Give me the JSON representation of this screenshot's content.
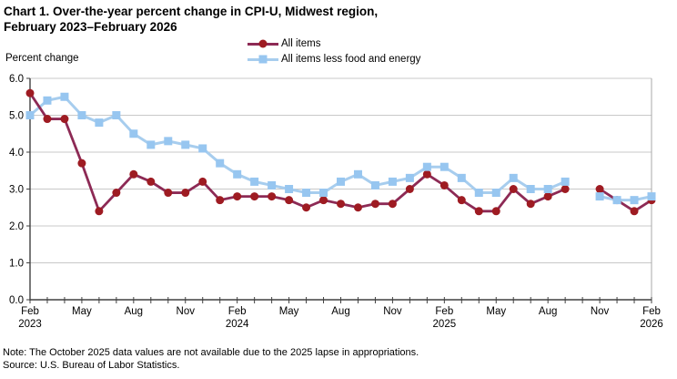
{
  "title": {
    "line1": "Chart 1. Over-the-year percent change in CPI-U, Midwest region,",
    "line2": "February 2023–February 2026"
  },
  "axis": {
    "y_title": "Percent change"
  },
  "legend": [
    {
      "label": "All items"
    },
    {
      "label": "All items less food and energy"
    }
  ],
  "note": "Note: The October 2025 data values are not available due to the 2025 lapse in appropriations.",
  "source": "Source: U.S. Bureau of Labor Statistics.",
  "colors": {
    "all_items_line": "#8D2A55",
    "all_items_marker": "#9E1B22",
    "core_line": "#A7CDEE",
    "core_marker": "#97C6F0",
    "gridline": "#C8C8C8",
    "axis": "#404040",
    "border": "#A8A8A8"
  },
  "chart_data": {
    "type": "line",
    "title": "Chart 1. Over-the-year percent change in CPI-U, Midwest region, February 2023–February 2026",
    "ylabel": "Percent change",
    "ylim": [
      0,
      6
    ],
    "ytick_step": 1,
    "grid": "horizontal",
    "legend_position": "top-center",
    "missing_data_note": "October 2025 values not available",
    "categories": [
      "Feb 2023",
      "Mar 2023",
      "Apr 2023",
      "May 2023",
      "Jun 2023",
      "Jul 2023",
      "Aug 2023",
      "Sep 2023",
      "Oct 2023",
      "Nov 2023",
      "Dec 2023",
      "Jan 2024",
      "Feb 2024",
      "Mar 2024",
      "Apr 2024",
      "May 2024",
      "Jun 2024",
      "Jul 2024",
      "Aug 2024",
      "Sep 2024",
      "Oct 2024",
      "Nov 2024",
      "Dec 2024",
      "Jan 2025",
      "Feb 2025",
      "Mar 2025",
      "Apr 2025",
      "May 2025",
      "Jun 2025",
      "Jul 2025",
      "Aug 2025",
      "Sep 2025",
      "Oct 2025",
      "Nov 2025",
      "Dec 2025",
      "Jan 2026",
      "Feb 2026"
    ],
    "x_ticks": [
      {
        "i": 0,
        "month": "Feb",
        "year": "2023"
      },
      {
        "i": 3,
        "month": "May"
      },
      {
        "i": 6,
        "month": "Aug"
      },
      {
        "i": 9,
        "month": "Nov"
      },
      {
        "i": 12,
        "month": "Feb",
        "year": "2024"
      },
      {
        "i": 15,
        "month": "May"
      },
      {
        "i": 18,
        "month": "Aug"
      },
      {
        "i": 21,
        "month": "Nov"
      },
      {
        "i": 24,
        "month": "Feb",
        "year": "2025"
      },
      {
        "i": 27,
        "month": "May"
      },
      {
        "i": 30,
        "month": "Aug"
      },
      {
        "i": 33,
        "month": "Nov"
      },
      {
        "i": 36,
        "month": "Feb",
        "year": "2026"
      }
    ],
    "series": [
      {
        "name": "All items",
        "marker": "circle",
        "values": [
          5.6,
          4.9,
          4.9,
          3.7,
          2.4,
          2.9,
          3.4,
          3.2,
          2.9,
          2.9,
          3.2,
          2.7,
          2.8,
          2.8,
          2.8,
          2.7,
          2.5,
          2.7,
          2.6,
          2.5,
          2.6,
          2.6,
          3.0,
          3.4,
          3.1,
          2.7,
          2.4,
          2.4,
          3.0,
          2.6,
          2.8,
          3.0,
          null,
          3.0,
          2.7,
          2.4,
          2.7
        ]
      },
      {
        "name": "All items less food and energy",
        "marker": "square",
        "values": [
          5.0,
          5.4,
          5.5,
          5.0,
          4.8,
          5.0,
          4.5,
          4.2,
          4.3,
          4.2,
          4.1,
          3.7,
          3.4,
          3.2,
          3.1,
          3.0,
          2.9,
          2.9,
          3.2,
          3.4,
          3.1,
          3.2,
          3.3,
          3.6,
          3.6,
          3.3,
          2.9,
          2.9,
          3.3,
          3.0,
          3.0,
          3.2,
          null,
          2.8,
          2.7,
          2.7,
          2.8
        ]
      }
    ]
  }
}
